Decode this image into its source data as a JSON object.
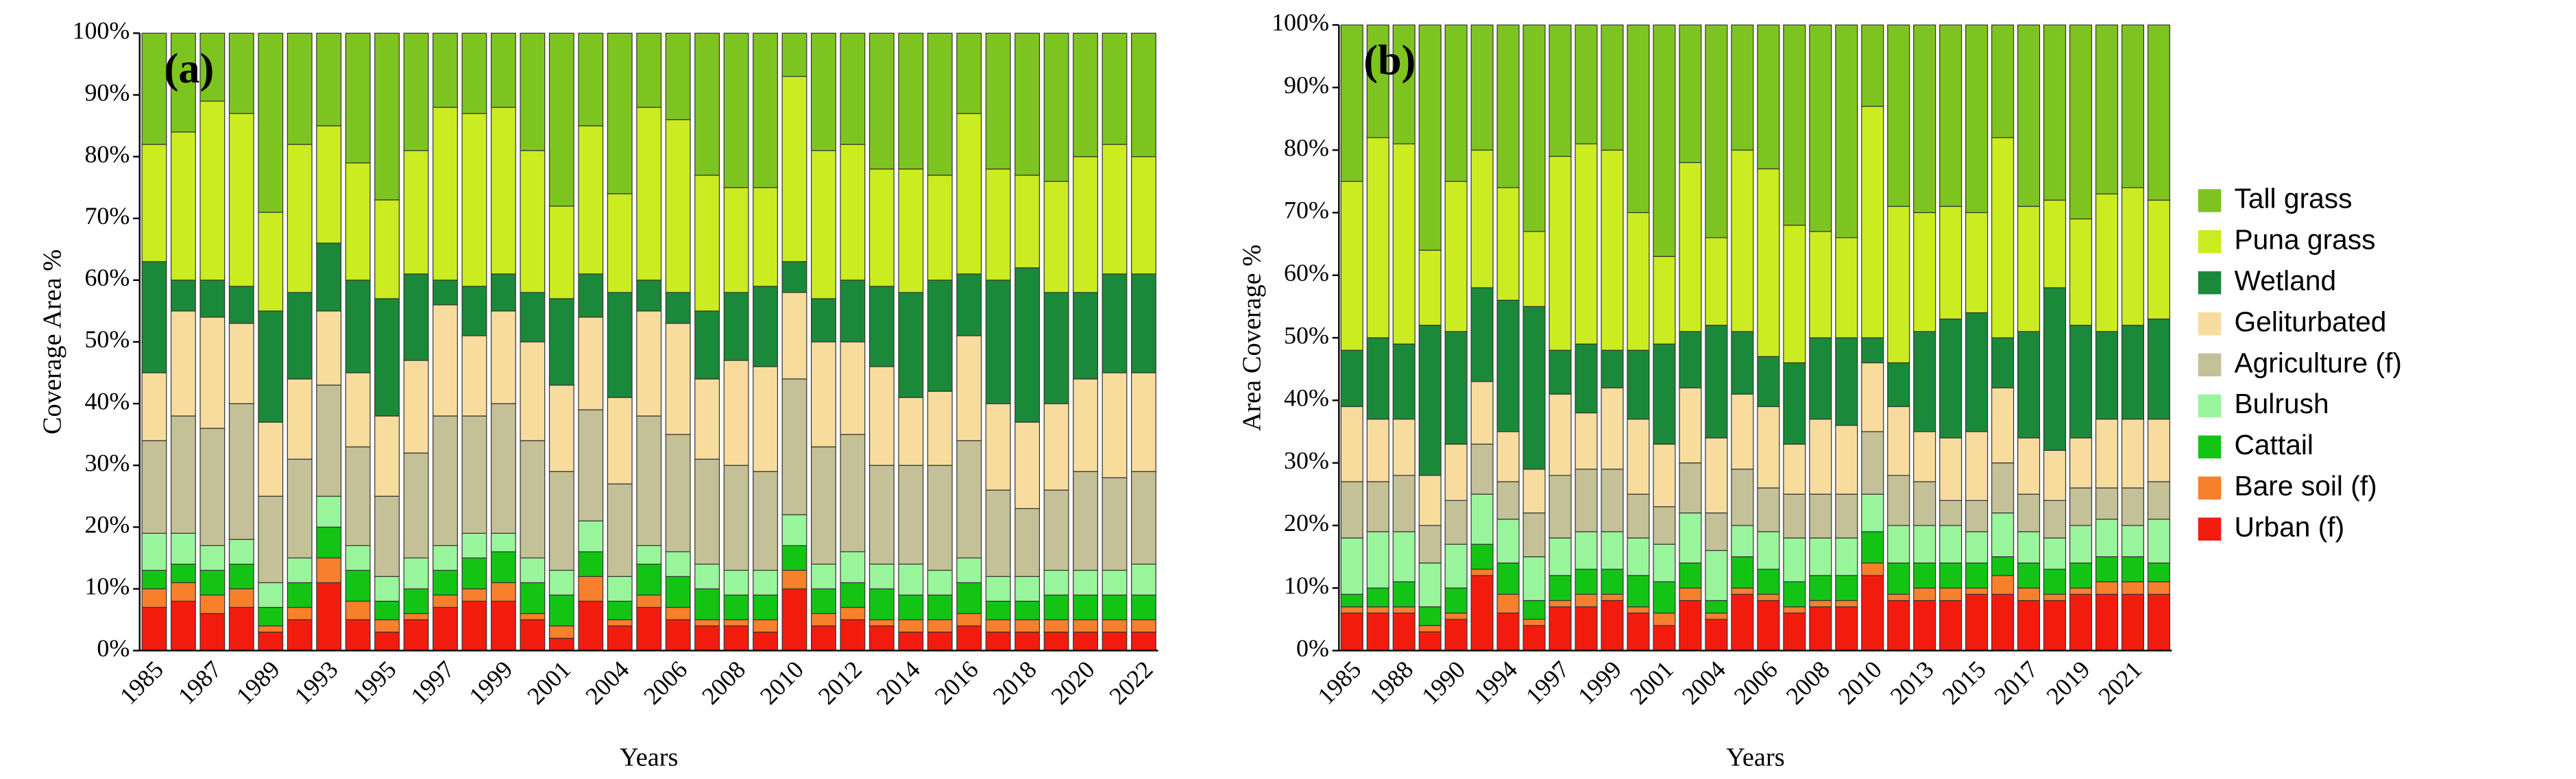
{
  "chart_data": [
    {
      "type": "stacked_bar",
      "title": "(a)",
      "x_label": "Years",
      "y_label": "Coverage Area %",
      "categories": [
        "1985",
        null,
        "1987",
        null,
        "1989",
        null,
        "1993",
        null,
        "1995",
        null,
        "1997",
        null,
        "1999",
        null,
        "2001",
        null,
        "2004",
        null,
        "2006",
        null,
        "2008",
        null,
        "2010",
        null,
        "2012",
        null,
        "2014",
        null,
        "2016",
        null,
        "2018",
        null,
        "2020",
        null,
        "2022"
      ],
      "ylim": [
        0,
        100
      ],
      "yticks": [
        {
          "value": 0,
          "label": "0%"
        },
        {
          "value": 10,
          "label": "10%"
        },
        {
          "value": 20,
          "label": "20%"
        },
        {
          "value": 30,
          "label": "30%"
        },
        {
          "value": 40,
          "label": "40%"
        },
        {
          "value": 50,
          "label": "50%"
        },
        {
          "value": 60,
          "label": "60%"
        },
        {
          "value": 70,
          "label": "70%"
        },
        {
          "value": 80,
          "label": "80%"
        },
        {
          "value": 90,
          "label": "90%"
        },
        {
          "value": 100,
          "label": "100%"
        }
      ],
      "grid": false,
      "series": [
        {
          "name": "Urban (f)",
          "color": "#f21c0e",
          "values": [
            7,
            8,
            6,
            7,
            3,
            5,
            11,
            5,
            3,
            5,
            7,
            8,
            8,
            5,
            2,
            8,
            4,
            7,
            5,
            4,
            4,
            3,
            10,
            4,
            5,
            4,
            3,
            3,
            4,
            3,
            3,
            3,
            3,
            3,
            3
          ]
        },
        {
          "name": "Bare soil (f)",
          "color": "#f7802c",
          "values": [
            3,
            3,
            3,
            3,
            1,
            2,
            4,
            3,
            2,
            1,
            2,
            2,
            3,
            1,
            2,
            4,
            1,
            2,
            2,
            1,
            1,
            2,
            3,
            2,
            2,
            1,
            2,
            2,
            2,
            2,
            2,
            2,
            2,
            2,
            2
          ]
        },
        {
          "name": "Cattail",
          "color": "#14c414",
          "values": [
            3,
            3,
            4,
            4,
            3,
            4,
            5,
            5,
            3,
            4,
            4,
            5,
            5,
            5,
            5,
            4,
            3,
            5,
            5,
            5,
            4,
            4,
            4,
            4,
            4,
            5,
            4,
            4,
            5,
            3,
            3,
            4,
            4,
            4,
            4
          ]
        },
        {
          "name": "Bulrush",
          "color": "#99f59b",
          "values": [
            6,
            5,
            4,
            4,
            4,
            4,
            5,
            4,
            4,
            5,
            4,
            4,
            3,
            4,
            4,
            5,
            4,
            3,
            4,
            4,
            4,
            4,
            5,
            4,
            5,
            4,
            5,
            4,
            4,
            4,
            4,
            4,
            4,
            4,
            5
          ]
        },
        {
          "name": "Agriculture (f)",
          "color": "#c4c097",
          "values": [
            15,
            19,
            19,
            22,
            14,
            16,
            18,
            16,
            13,
            17,
            21,
            19,
            21,
            19,
            16,
            18,
            15,
            21,
            19,
            17,
            17,
            16,
            22,
            19,
            19,
            16,
            16,
            17,
            19,
            14,
            11,
            13,
            16,
            15,
            15
          ]
        },
        {
          "name": "Geliturbated",
          "color": "#f7dc9e",
          "values": [
            11,
            17,
            18,
            13,
            12,
            13,
            12,
            12,
            13,
            15,
            18,
            13,
            15,
            16,
            14,
            15,
            14,
            17,
            18,
            13,
            17,
            17,
            14,
            17,
            15,
            16,
            11,
            12,
            17,
            14,
            14,
            14,
            15,
            17,
            16
          ]
        },
        {
          "name": "Wetland",
          "color": "#1a8a3a",
          "values": [
            18,
            5,
            6,
            6,
            18,
            14,
            11,
            15,
            19,
            14,
            4,
            8,
            6,
            8,
            14,
            7,
            17,
            5,
            5,
            11,
            11,
            13,
            5,
            7,
            10,
            13,
            17,
            18,
            10,
            20,
            25,
            18,
            14,
            16,
            16
          ]
        },
        {
          "name": "Puna grass",
          "color": "#cbec20",
          "values": [
            19,
            24,
            29,
            28,
            16,
            24,
            19,
            19,
            16,
            20,
            28,
            28,
            27,
            23,
            15,
            24,
            16,
            28,
            28,
            22,
            17,
            16,
            30,
            24,
            22,
            19,
            20,
            17,
            26,
            18,
            15,
            18,
            22,
            21,
            19
          ]
        },
        {
          "name": "Tall grass",
          "color": "#7ec420",
          "values": [
            18,
            16,
            11,
            13,
            29,
            18,
            15,
            21,
            27,
            19,
            12,
            13,
            12,
            19,
            28,
            15,
            26,
            12,
            14,
            23,
            25,
            25,
            7,
            19,
            18,
            22,
            22,
            23,
            13,
            22,
            23,
            24,
            20,
            18,
            20
          ]
        }
      ]
    },
    {
      "type": "stacked_bar",
      "title": "(b)",
      "x_label": "Years",
      "y_label": "Area Coverage %",
      "categories": [
        "1985",
        null,
        "1988",
        null,
        "1990",
        null,
        "1994",
        null,
        "1997",
        null,
        "1999",
        null,
        "2001",
        null,
        "2004",
        null,
        "2006",
        null,
        "2008",
        null,
        "2010",
        null,
        "2013",
        null,
        "2015",
        null,
        "2017",
        null,
        "2019",
        null,
        "2021",
        null
      ],
      "ylim": [
        0,
        100
      ],
      "yticks": [
        {
          "value": 0,
          "label": "0%"
        },
        {
          "value": 10,
          "label": "10%"
        },
        {
          "value": 20,
          "label": "20%"
        },
        {
          "value": 30,
          "label": "30%"
        },
        {
          "value": 40,
          "label": "40%"
        },
        {
          "value": 50,
          "label": "50%"
        },
        {
          "value": 60,
          "label": "60%"
        },
        {
          "value": 70,
          "label": "70%"
        },
        {
          "value": 80,
          "label": "80%"
        },
        {
          "value": 90,
          "label": "90%"
        },
        {
          "value": 100,
          "label": "100%"
        }
      ],
      "grid": false,
      "series": [
        {
          "name": "Urban (f)",
          "color": "#f21c0e",
          "values": [
            6,
            6,
            6,
            3,
            5,
            12,
            6,
            4,
            7,
            7,
            8,
            6,
            4,
            8,
            5,
            9,
            8,
            6,
            7,
            7,
            12,
            8,
            8,
            8,
            9,
            9,
            8,
            8,
            9,
            9,
            9,
            9
          ]
        },
        {
          "name": "Bare soil (f)",
          "color": "#f7802c",
          "values": [
            1,
            1,
            1,
            1,
            1,
            1,
            3,
            1,
            1,
            2,
            1,
            1,
            2,
            2,
            1,
            1,
            1,
            1,
            1,
            1,
            2,
            1,
            2,
            2,
            1,
            3,
            2,
            1,
            1,
            2,
            2,
            2
          ]
        },
        {
          "name": "Cattail",
          "color": "#14c414",
          "values": [
            2,
            3,
            4,
            3,
            4,
            4,
            5,
            3,
            4,
            4,
            4,
            5,
            5,
            4,
            2,
            5,
            4,
            4,
            4,
            4,
            5,
            5,
            4,
            4,
            4,
            3,
            4,
            4,
            4,
            4,
            4,
            3
          ]
        },
        {
          "name": "Bulrush",
          "color": "#99f59b",
          "values": [
            9,
            9,
            8,
            7,
            7,
            8,
            7,
            7,
            6,
            6,
            6,
            6,
            6,
            8,
            8,
            5,
            6,
            7,
            6,
            6,
            6,
            6,
            6,
            6,
            5,
            7,
            5,
            5,
            6,
            6,
            5,
            7
          ]
        },
        {
          "name": "Agriculture (f)",
          "color": "#c4c097",
          "values": [
            9,
            8,
            9,
            6,
            7,
            8,
            6,
            7,
            10,
            10,
            10,
            7,
            6,
            8,
            6,
            9,
            7,
            7,
            7,
            7,
            10,
            8,
            7,
            4,
            5,
            8,
            6,
            6,
            6,
            5,
            6,
            6
          ]
        },
        {
          "name": "Geliturbated",
          "color": "#f7dc9e",
          "values": [
            12,
            10,
            9,
            8,
            9,
            10,
            8,
            7,
            13,
            9,
            13,
            12,
            10,
            12,
            12,
            12,
            13,
            8,
            12,
            11,
            11,
            11,
            8,
            10,
            11,
            12,
            9,
            8,
            8,
            11,
            11,
            10
          ]
        },
        {
          "name": "Wetland",
          "color": "#1a8a3a",
          "values": [
            9,
            13,
            12,
            24,
            18,
            15,
            21,
            26,
            7,
            11,
            6,
            11,
            16,
            9,
            18,
            10,
            8,
            13,
            13,
            14,
            4,
            7,
            16,
            19,
            19,
            8,
            17,
            26,
            18,
            14,
            15,
            16
          ]
        },
        {
          "name": "Puna grass",
          "color": "#cbec20",
          "values": [
            27,
            32,
            32,
            12,
            24,
            22,
            18,
            12,
            31,
            32,
            32,
            22,
            14,
            27,
            14,
            29,
            30,
            22,
            17,
            16,
            37,
            25,
            19,
            18,
            16,
            32,
            20,
            14,
            17,
            22,
            22,
            19
          ]
        },
        {
          "name": "Tall grass",
          "color": "#7ec420",
          "values": [
            25,
            18,
            19,
            36,
            25,
            20,
            26,
            33,
            21,
            19,
            20,
            30,
            37,
            22,
            34,
            20,
            23,
            32,
            33,
            34,
            13,
            29,
            30,
            29,
            30,
            18,
            29,
            28,
            31,
            27,
            26,
            28
          ]
        }
      ]
    }
  ]
}
